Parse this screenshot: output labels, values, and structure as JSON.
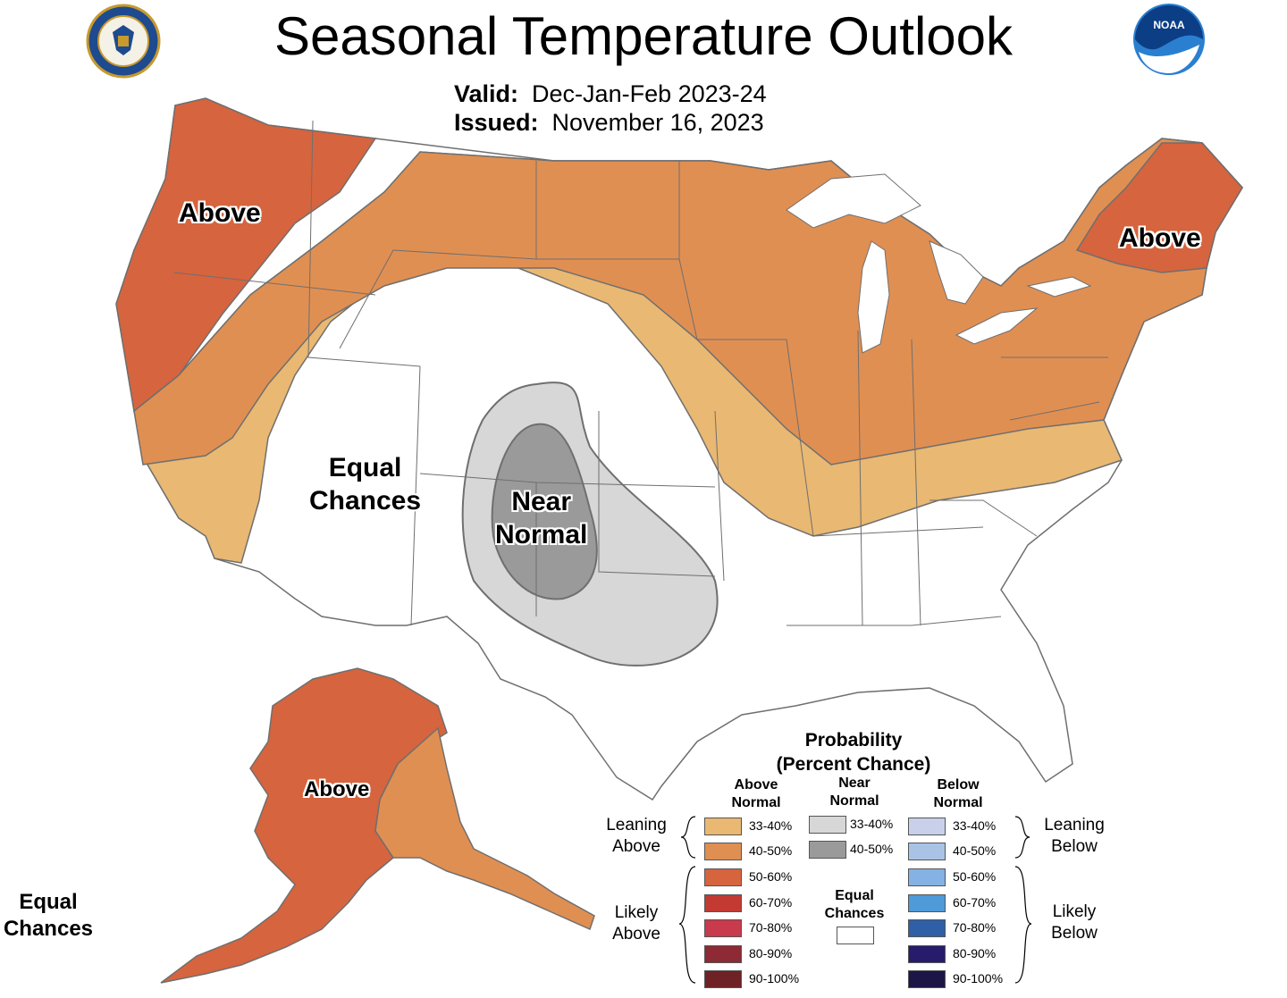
{
  "title": "Seasonal Temperature Outlook",
  "valid_label": "Valid:",
  "valid_value": "Dec-Jan-Feb 2023-24",
  "issued_label": "Issued:",
  "issued_value": "November 16, 2023",
  "seals": {
    "left": "department-of-commerce-seal",
    "right": "noaa-logo",
    "noaa_text": "NOAA"
  },
  "map_labels": {
    "west_above": "Above",
    "northeast_above": "Above",
    "equal_chances": [
      "Equal",
      "Chances"
    ],
    "near_normal": [
      "Near",
      "Normal"
    ],
    "alaska_above": "Above",
    "alaska_equal_chances": [
      "Equal",
      "Chances"
    ]
  },
  "legend": {
    "title": [
      "Probability",
      "(Percent Chance)"
    ],
    "columns": {
      "above": [
        "Above",
        "Normal"
      ],
      "near": [
        "Near",
        "Normal"
      ],
      "below": [
        "Below",
        "Normal"
      ]
    },
    "above_swatches": [
      {
        "label": "33-40%",
        "color": "#e9b872"
      },
      {
        "label": "40-50%",
        "color": "#e08f52"
      },
      {
        "label": "50-60%",
        "color": "#d6643e"
      },
      {
        "label": "60-70%",
        "color": "#c33a33"
      },
      {
        "label": "70-80%",
        "color": "#c93a4c"
      },
      {
        "label": "80-90%",
        "color": "#8d2a34"
      },
      {
        "label": "90-100%",
        "color": "#6e2225"
      }
    ],
    "near_swatches": [
      {
        "label": "33-40%",
        "color": "#d7d7d7"
      },
      {
        "label": "40-50%",
        "color": "#9a9a9a"
      }
    ],
    "below_swatches": [
      {
        "label": "33-40%",
        "color": "#c9d0ea"
      },
      {
        "label": "40-50%",
        "color": "#a9c3e6"
      },
      {
        "label": "50-60%",
        "color": "#84b2e4"
      },
      {
        "label": "60-70%",
        "color": "#4f9ad8"
      },
      {
        "label": "70-80%",
        "color": "#2e5fa7"
      },
      {
        "label": "80-90%",
        "color": "#261c6b"
      },
      {
        "label": "90-100%",
        "color": "#1c1647"
      }
    ],
    "equal_chances": [
      "Equal",
      "Chances"
    ],
    "equal_chances_color": "#ffffff",
    "side_labels": {
      "leaning_above": [
        "Leaning",
        "Above"
      ],
      "likely_above": [
        "Likely",
        "Above"
      ],
      "leaning_below": [
        "Leaning",
        "Below"
      ],
      "likely_below": [
        "Likely",
        "Below"
      ]
    }
  },
  "colors": {
    "above_33_40": "#e9b872",
    "above_40_50": "#e08f52",
    "above_50_60": "#d6643e",
    "near_33_40": "#d7d7d7",
    "near_40_50": "#9a9a9a",
    "boundary": "#6f6f6f"
  }
}
